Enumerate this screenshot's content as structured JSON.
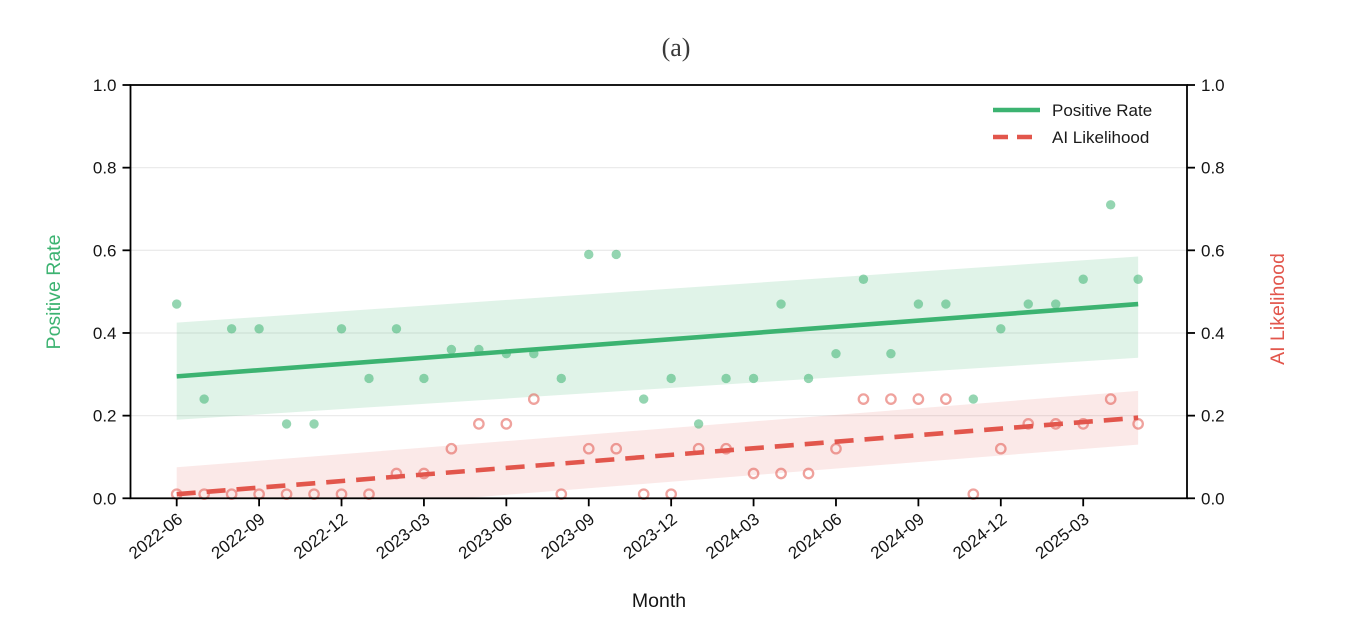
{
  "chart_data": {
    "type": "scatter",
    "title": "(a)",
    "xlabel": "Month",
    "ylabel_left": "Positive Rate",
    "ylabel_right": "AI Likelihood",
    "ylim": [
      0,
      1
    ],
    "ytick_values": [
      0.0,
      0.2,
      0.4,
      0.6,
      0.8,
      1.0
    ],
    "ytick_labels": [
      "0.0",
      "0.2",
      "0.4",
      "0.6",
      "0.8",
      "1.0"
    ],
    "grid": "horizontal",
    "background": "#ffffff",
    "x": [
      "2022-06",
      "2022-07",
      "2022-08",
      "2022-09",
      "2022-10",
      "2022-11",
      "2022-12",
      "2023-01",
      "2023-02",
      "2023-03",
      "2023-04",
      "2023-05",
      "2023-06",
      "2023-07",
      "2023-08",
      "2023-09",
      "2023-10",
      "2023-11",
      "2023-12",
      "2024-01",
      "2024-02",
      "2024-03",
      "2024-04",
      "2024-05",
      "2024-06",
      "2024-07",
      "2024-08",
      "2024-09",
      "2024-10",
      "2024-11",
      "2024-12",
      "2025-01",
      "2025-02",
      "2025-03",
      "2025-04",
      "2025-05"
    ],
    "x_tick_labels": [
      "2022-06",
      "2022-09",
      "2022-12",
      "2023-03",
      "2023-06",
      "2023-09",
      "2023-12",
      "2024-03",
      "2024-06",
      "2024-09",
      "2024-12",
      "2025-03"
    ],
    "series": [
      {
        "name": "Positive Rate",
        "color": "#3cb371",
        "line_style": "solid",
        "marker": "filled-circle",
        "values": [
          0.47,
          0.24,
          0.41,
          0.41,
          0.18,
          0.18,
          0.41,
          0.29,
          0.41,
          0.29,
          0.36,
          0.36,
          0.35,
          0.35,
          0.29,
          0.59,
          0.59,
          0.24,
          0.29,
          0.18,
          0.29,
          0.29,
          0.47,
          0.29,
          0.35,
          0.53,
          0.35,
          0.47,
          0.47,
          0.24,
          0.41,
          0.47,
          0.47,
          0.53,
          0.71,
          0.53
        ],
        "trend": {
          "start": 0.295,
          "end": 0.47
        },
        "ci_top": {
          "start": 0.425,
          "end": 0.585
        },
        "ci_bottom": {
          "start": 0.19,
          "end": 0.34
        }
      },
      {
        "name": "AI Likelihood",
        "color": "#e2564c",
        "line_style": "dashed",
        "marker": "open-circle",
        "values": [
          0.01,
          0.01,
          0.01,
          0.01,
          0.01,
          0.01,
          0.01,
          0.01,
          0.06,
          0.06,
          0.12,
          0.18,
          0.18,
          0.24,
          0.01,
          0.12,
          0.12,
          0.01,
          0.01,
          0.12,
          0.12,
          0.06,
          0.06,
          0.06,
          0.12,
          0.24,
          0.24,
          0.24,
          0.24,
          0.01,
          0.12,
          0.18,
          0.18,
          0.18,
          0.24,
          0.18
        ],
        "trend": {
          "start": 0.01,
          "end": 0.195
        },
        "ci_top": {
          "start": 0.075,
          "end": 0.26
        },
        "ci_bottom": {
          "start": -0.055,
          "end": 0.13
        }
      }
    ],
    "legend": {
      "position": "upper-right",
      "entries": [
        "Positive Rate",
        "AI Likelihood"
      ]
    }
  }
}
